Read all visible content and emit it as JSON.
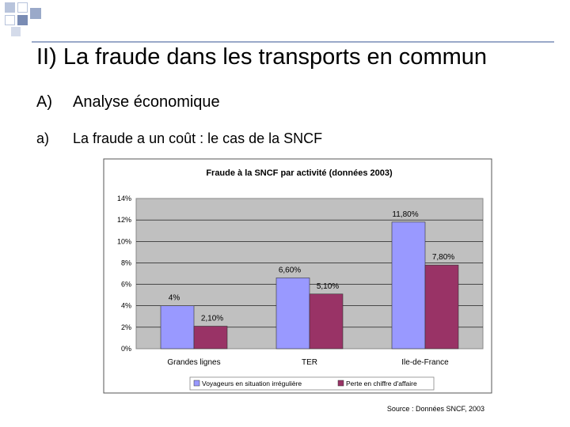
{
  "slide": {
    "title": "II) La fraude dans les transports en commun",
    "section_marker": "A)",
    "section_text": "Analyse économique",
    "sub_marker": "a)",
    "sub_text": "La fraude a un coût : le cas de la SNCF",
    "source": "Source : Données SNCF, 2003"
  },
  "colors": {
    "series_1": "#9999ff",
    "series_2": "#993366",
    "plot_bg": "#c0c0c0",
    "accent": "#9aa9c9"
  },
  "chart_data": {
    "type": "bar",
    "title": "Fraude à la SNCF par activité (données 2003)",
    "categories": [
      "Grandes lignes",
      "TER",
      "Ile-de-France"
    ],
    "series": [
      {
        "name": "Voyageurs en situation irrégulière",
        "values": [
          4,
          6.6,
          11.8
        ],
        "labels": [
          "4%",
          "6,60%",
          "11,80%"
        ]
      },
      {
        "name": "Perte en chiffre d'affaire",
        "values": [
          2.1,
          5.1,
          7.8
        ],
        "labels": [
          "2,10%",
          "5,10%",
          "7,80%"
        ]
      }
    ],
    "ylim": [
      0,
      14
    ],
    "yticks": [
      "0%",
      "2%",
      "4%",
      "6%",
      "8%",
      "10%",
      "12%",
      "14%"
    ],
    "grid": true,
    "legend_position": "bottom"
  }
}
